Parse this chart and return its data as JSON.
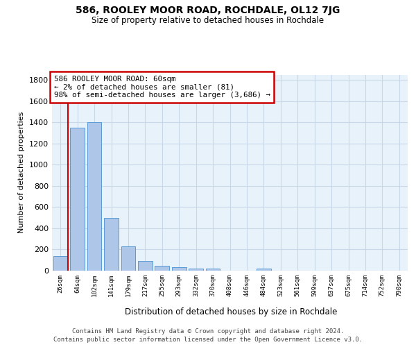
{
  "title": "586, ROOLEY MOOR ROAD, ROCHDALE, OL12 7JG",
  "subtitle": "Size of property relative to detached houses in Rochdale",
  "xlabel": "Distribution of detached houses by size in Rochdale",
  "ylabel": "Number of detached properties",
  "categories": [
    "26sqm",
    "64sqm",
    "102sqm",
    "141sqm",
    "179sqm",
    "217sqm",
    "255sqm",
    "293sqm",
    "332sqm",
    "370sqm",
    "408sqm",
    "446sqm",
    "484sqm",
    "523sqm",
    "561sqm",
    "599sqm",
    "637sqm",
    "675sqm",
    "714sqm",
    "752sqm",
    "790sqm"
  ],
  "values": [
    140,
    1350,
    1400,
    495,
    230,
    90,
    48,
    30,
    22,
    18,
    0,
    0,
    18,
    0,
    0,
    0,
    0,
    0,
    0,
    0,
    0
  ],
  "bar_color": "#aec6e8",
  "bar_edge_color": "#5b9bd5",
  "vline_color": "#cc0000",
  "annotation_text": "586 ROOLEY MOOR ROAD: 60sqm\n← 2% of detached houses are smaller (81)\n98% of semi-detached houses are larger (3,686) →",
  "annotation_box_edgecolor": "#cc0000",
  "ylim": [
    0,
    1850
  ],
  "yticks": [
    0,
    200,
    400,
    600,
    800,
    1000,
    1200,
    1400,
    1600,
    1800
  ],
  "grid_color": "#c8d8e8",
  "background_color": "#e8f2fa",
  "footer_line1": "Contains HM Land Registry data © Crown copyright and database right 2024.",
  "footer_line2": "Contains public sector information licensed under the Open Government Licence v3.0."
}
